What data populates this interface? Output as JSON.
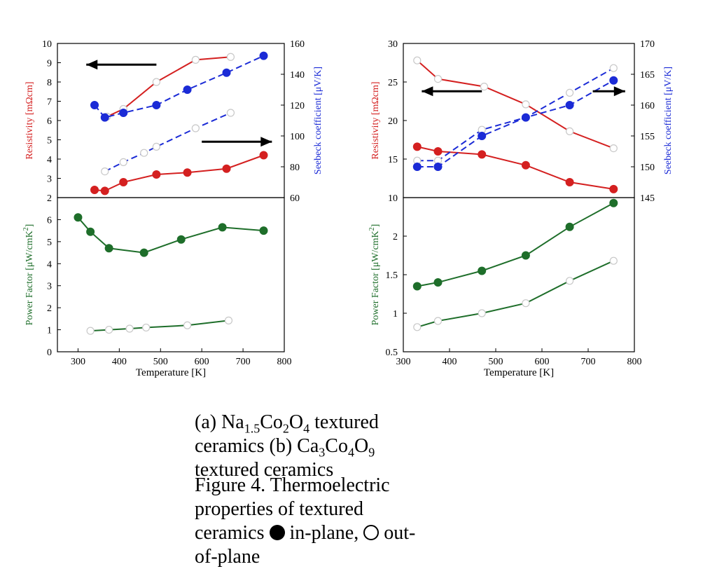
{
  "figure": {
    "caption_a_parts": {
      "prefix": "(a) Na",
      "sub1": "1.5",
      "mid1": "Co",
      "sub2": "2",
      "mid2": "O",
      "sub3": "4",
      "suffix": " textured ceramics"
    },
    "caption_b": "(b) Ca",
    "caption_b_tail": "Co",
    "caption_b_tail2": "O",
    "caption_b_suffix": " textured ceramics",
    "caption_b_sub1": "3",
    "caption_b_sub2": "4",
    "caption_b_sub3": "9",
    "figure_caption": "Figure 4. Thermoelectric properties of textured",
    "figure_caption_line2": "ceramics",
    "figure_caption_filled": "in-plane,",
    "figure_caption_open": "out-of-plane"
  },
  "colors": {
    "red": "#d42020",
    "blue": "#1b2bd6",
    "green": "#1e6e2a",
    "axis": "#000000"
  },
  "chart_data": [
    {
      "id": "a_top",
      "type": "line",
      "xlim": [
        250,
        800
      ],
      "y_left": {
        "label": "Resistivity [mΩcm]",
        "lim": [
          2,
          10
        ],
        "ticks": [
          2,
          3,
          4,
          5,
          6,
          7,
          8,
          9,
          10
        ]
      },
      "y_right": {
        "label": "Seebeck coefficient [μV/K]",
        "lim": [
          60,
          160
        ],
        "ticks": [
          60,
          80,
          100,
          120,
          140,
          160
        ]
      },
      "series": [
        {
          "axis": "left",
          "color": "red",
          "marker": "filled",
          "dash": false,
          "x": [
            340,
            365,
            410,
            490,
            565,
            660,
            750
          ],
          "y": [
            2.4,
            2.35,
            2.8,
            3.2,
            3.3,
            3.5,
            4.2
          ]
        },
        {
          "axis": "left",
          "color": "red",
          "marker": "open",
          "dash": false,
          "x": [
            370,
            410,
            490,
            585,
            670
          ],
          "y": [
            6.2,
            6.6,
            8.0,
            9.15,
            9.3
          ]
        },
        {
          "axis": "right",
          "color": "blue",
          "marker": "filled",
          "dash": true,
          "x": [
            340,
            365,
            410,
            490,
            565,
            660,
            750
          ],
          "y": [
            120,
            112,
            115,
            120,
            130,
            141,
            152
          ]
        },
        {
          "axis": "right",
          "color": "blue",
          "marker": "open",
          "dash": true,
          "x": [
            365,
            410,
            460,
            490,
            585,
            670
          ],
          "y": [
            77,
            83,
            89,
            93,
            105,
            115
          ]
        }
      ],
      "arrows": [
        {
          "from": [
            490,
            8.9
          ],
          "to": [
            320,
            8.9
          ]
        },
        {
          "from": [
            600,
            4.9
          ],
          "to": [
            770,
            4.9
          ]
        }
      ]
    },
    {
      "id": "a_bottom",
      "type": "line",
      "xlim": [
        250,
        800
      ],
      "xlabel": "Temperature [K]",
      "x_ticks": [
        300,
        400,
        500,
        600,
        700,
        800
      ],
      "y_left": {
        "label": "Power Factor [μW/cmK",
        "label_sup": "2",
        "label_end": "]",
        "lim": [
          0,
          7
        ],
        "ticks": [
          0,
          1,
          2,
          3,
          4,
          5,
          6
        ]
      },
      "series": [
        {
          "axis": "left",
          "color": "green",
          "marker": "filled",
          "dash": false,
          "x": [
            300,
            330,
            375,
            460,
            550,
            650,
            750
          ],
          "y": [
            6.1,
            5.45,
            4.7,
            4.5,
            5.1,
            5.65,
            5.5
          ]
        },
        {
          "axis": "left",
          "color": "green",
          "marker": "open",
          "dash": false,
          "x": [
            330,
            375,
            425,
            465,
            565,
            665
          ],
          "y": [
            0.95,
            1.0,
            1.05,
            1.1,
            1.2,
            1.42
          ]
        }
      ]
    },
    {
      "id": "b_top",
      "type": "line",
      "xlim": [
        300,
        800
      ],
      "y_left": {
        "label": "Resistivity [mΩcm]",
        "lim": [
          10,
          30
        ],
        "ticks": [
          10,
          15,
          20,
          25,
          30
        ]
      },
      "y_right": {
        "label": "Seebeck coefficient [μV/K]",
        "lim": [
          145,
          170
        ],
        "ticks": [
          145,
          150,
          155,
          160,
          165,
          170
        ]
      },
      "series": [
        {
          "axis": "left",
          "color": "red",
          "marker": "open",
          "dash": false,
          "x": [
            330,
            375,
            475,
            565,
            660,
            755
          ],
          "y": [
            27.8,
            25.4,
            24.4,
            22.1,
            18.6,
            16.4
          ]
        },
        {
          "axis": "left",
          "color": "red",
          "marker": "filled",
          "dash": false,
          "x": [
            330,
            375,
            470,
            565,
            660,
            755
          ],
          "y": [
            16.6,
            16.0,
            15.6,
            14.2,
            12.0,
            11.1
          ]
        },
        {
          "axis": "right",
          "color": "blue",
          "marker": "open",
          "dash": true,
          "x": [
            330,
            375,
            470,
            565,
            660,
            755
          ],
          "y": [
            151,
            151,
            156,
            158,
            162,
            166
          ]
        },
        {
          "axis": "right",
          "color": "blue",
          "marker": "filled",
          "dash": true,
          "x": [
            330,
            375,
            470,
            565,
            660,
            755
          ],
          "y": [
            150,
            150,
            155,
            158,
            160,
            164
          ]
        }
      ],
      "arrows": [
        {
          "from": [
            470,
            23.8
          ],
          "to": [
            340,
            23.8
          ]
        },
        {
          "from": [
            710,
            23.8
          ],
          "to": [
            780,
            23.8
          ]
        }
      ]
    },
    {
      "id": "b_bottom",
      "type": "line",
      "xlim": [
        300,
        800
      ],
      "xlabel": "Temperature [K]",
      "x_ticks": [
        300,
        400,
        500,
        600,
        700,
        800
      ],
      "y_left": {
        "label": "Power Factor [μW/cmK",
        "label_sup": "2",
        "label_end": "]",
        "lim": [
          0.5,
          2.5
        ],
        "ticks": [
          0.5,
          1,
          1.5,
          2
        ]
      },
      "series": [
        {
          "axis": "left",
          "color": "green",
          "marker": "filled",
          "dash": false,
          "x": [
            330,
            375,
            470,
            565,
            660,
            755
          ],
          "y": [
            1.35,
            1.4,
            1.55,
            1.75,
            2.12,
            2.43
          ]
        },
        {
          "axis": "left",
          "color": "green",
          "marker": "open",
          "dash": false,
          "x": [
            330,
            375,
            470,
            565,
            660,
            755
          ],
          "y": [
            0.82,
            0.9,
            1.0,
            1.13,
            1.42,
            1.68
          ]
        }
      ]
    }
  ]
}
